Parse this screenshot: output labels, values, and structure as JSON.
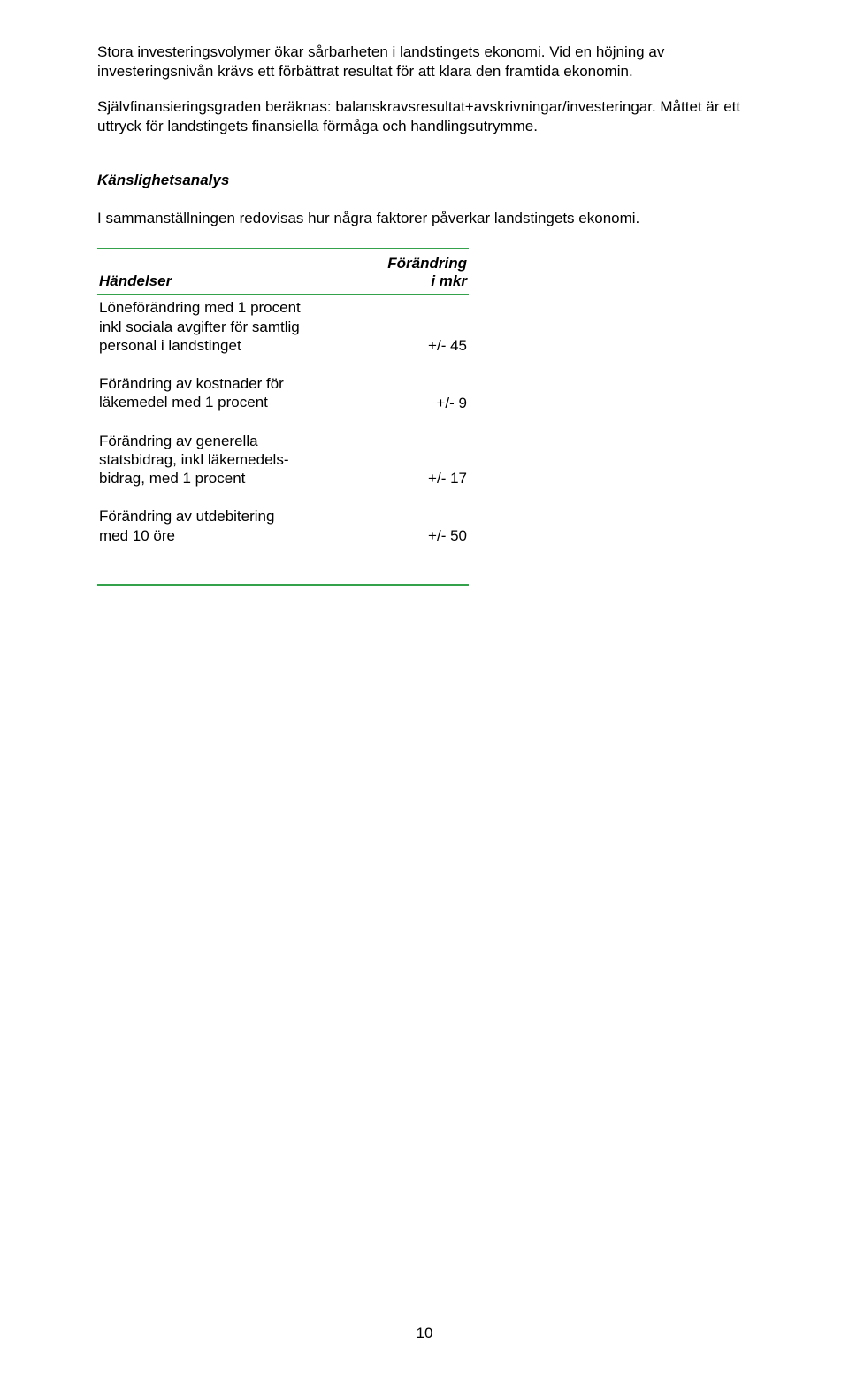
{
  "colors": {
    "rule_color": "#34a24a",
    "text_color": "#000000",
    "background": "#ffffff"
  },
  "paragraph1": "Stora investeringsvolymer ökar sårbarheten i landstingets ekonomi. Vid en höjning av investeringsnivån krävs ett förbättrat resultat för att klara den framtida ekonomin.",
  "paragraph2": "Självfinansieringsgraden beräknas: balanskravsresultat+avskrivningar/investeringar. Måttet är ett uttryck för landstingets finansiella förmåga och handlingsutrymme.",
  "section_title": "Känslighetsanalys",
  "intro": "I sammanställningen redovisas hur några faktorer påverkar landstingets ekonomi.",
  "table": {
    "header_left": "Händelser",
    "header_right_line1": "Förändring",
    "header_right_line2": "i mkr",
    "rows": [
      {
        "label": "Löneförändring med 1 procent\ninkl sociala avgifter för samtlig\npersonal i landstinget",
        "value": "+/- 45"
      },
      {
        "label": "Förändring av kostnader för\nläkemedel med 1 procent",
        "value": "+/- 9"
      },
      {
        "label": "Förändring av generella\nstatsbidrag, inkl läkemedels-\nbidrag, med 1 procent",
        "value": "+/- 17"
      },
      {
        "label": "Förändring av utdebitering\nmed 10 öre",
        "value": "+/- 50"
      }
    ]
  },
  "page_number": "10"
}
